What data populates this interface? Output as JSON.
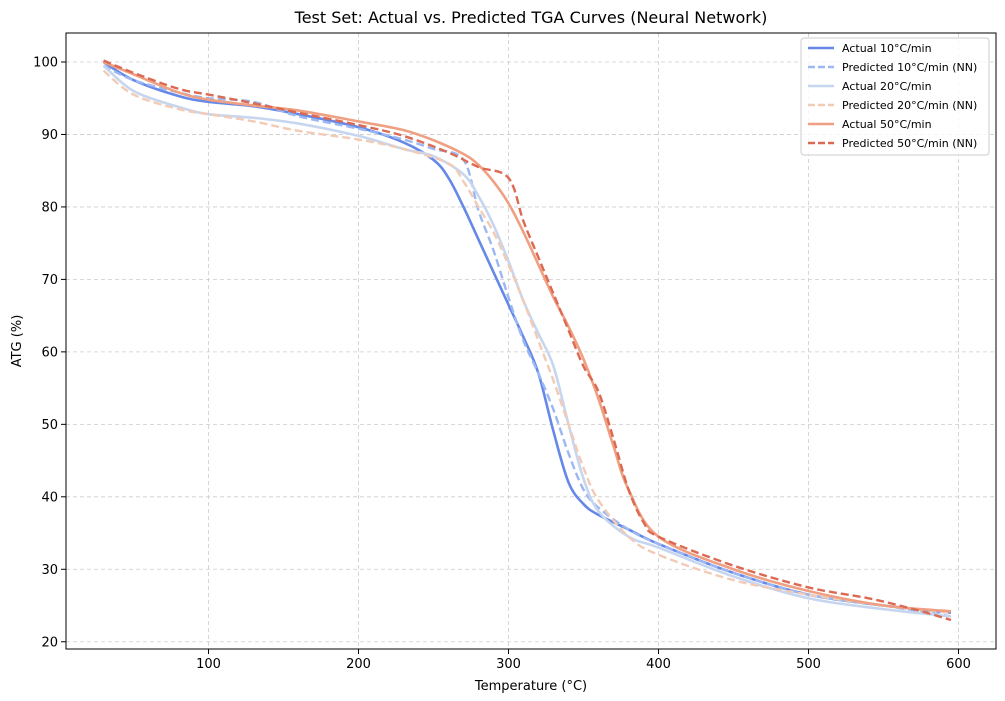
{
  "chart_data": {
    "type": "line",
    "title": "Test Set: Actual vs. Predicted TGA Curves (Neural Network)",
    "xlabel": "Temperature (°C)",
    "ylabel": "ATG (%)",
    "xlim": [
      5,
      625
    ],
    "ylim": [
      19,
      104
    ],
    "xticks": [
      100,
      200,
      300,
      400,
      500,
      600
    ],
    "yticks": [
      20,
      30,
      40,
      50,
      60,
      70,
      80,
      90,
      100
    ],
    "grid": true,
    "legend_position": "top-right",
    "series": [
      {
        "name": "Actual 10°C/min",
        "color": "#6688e8",
        "dashed": false,
        "width": 2.6,
        "x": [
          30,
          50,
          80,
          100,
          130,
          160,
          200,
          230,
          250,
          260,
          270,
          280,
          290,
          300,
          310,
          320,
          330,
          340,
          350,
          360,
          380,
          400,
          450,
          500,
          550,
          595
        ],
        "y": [
          100,
          97.5,
          95.3,
          94.5,
          93.9,
          92.8,
          91,
          88.9,
          86.5,
          84,
          80,
          75.5,
          71,
          66.5,
          62,
          57,
          49,
          42,
          39,
          37.5,
          35.5,
          33.5,
          29.5,
          26.5,
          25,
          24
        ]
      },
      {
        "name": "Predicted 10°C/min (NN)",
        "color": "#9bb8f3",
        "dashed": true,
        "width": 2.4,
        "x": [
          30,
          50,
          80,
          100,
          130,
          160,
          200,
          230,
          250,
          270,
          280,
          290,
          300,
          310,
          320,
          330,
          340,
          350,
          360,
          380,
          400,
          450,
          500,
          550,
          595
        ],
        "y": [
          99.5,
          97.5,
          95.8,
          95,
          94.5,
          92.5,
          90.8,
          89.3,
          88,
          86.5,
          79.5,
          74,
          67.5,
          61.5,
          57,
          52,
          46,
          41,
          38.5,
          35.5,
          33.5,
          29.5,
          26.5,
          25,
          23.5
        ]
      },
      {
        "name": "Actual 20°C/min",
        "color": "#c6d6ef",
        "dashed": false,
        "width": 2.6,
        "x": [
          30,
          50,
          80,
          100,
          130,
          160,
          200,
          230,
          250,
          270,
          280,
          290,
          300,
          310,
          320,
          330,
          340,
          350,
          360,
          380,
          400,
          450,
          500,
          550,
          595
        ],
        "y": [
          99.5,
          96,
          93.8,
          92.8,
          92.3,
          91.5,
          89.8,
          88,
          87,
          84.5,
          81.5,
          77.5,
          72.5,
          67,
          62.5,
          58,
          50,
          42.5,
          38,
          34.5,
          33,
          29,
          26,
          24.5,
          23.5
        ]
      },
      {
        "name": "Predicted 20°C/min (NN)",
        "color": "#f2cbb7",
        "dashed": true,
        "width": 2.4,
        "x": [
          30,
          50,
          80,
          100,
          130,
          160,
          200,
          230,
          260,
          270,
          280,
          290,
          300,
          310,
          320,
          330,
          340,
          350,
          360,
          380,
          400,
          450,
          500,
          550,
          595
        ],
        "y": [
          98.8,
          95.5,
          93.5,
          92.8,
          91.8,
          90.5,
          89.3,
          88,
          86,
          83.5,
          80,
          76.5,
          72,
          67,
          61.5,
          56,
          50,
          44,
          39.5,
          34.5,
          32,
          28.5,
          26.5,
          25,
          24
        ]
      },
      {
        "name": "Actual 50°C/min",
        "color": "#f0a082",
        "dashed": false,
        "width": 2.6,
        "x": [
          30,
          50,
          80,
          100,
          130,
          160,
          200,
          230,
          250,
          270,
          280,
          290,
          300,
          310,
          320,
          330,
          340,
          350,
          360,
          370,
          380,
          400,
          450,
          500,
          550,
          595
        ],
        "y": [
          100,
          98.3,
          95.8,
          94.8,
          94,
          93.3,
          91.8,
          90.6,
          89.2,
          87.3,
          85.8,
          83.5,
          80.5,
          76.5,
          72,
          67.5,
          63.5,
          59,
          53.5,
          47,
          41,
          34.5,
          30,
          27,
          25,
          24.2
        ]
      },
      {
        "name": "Predicted 50°C/min (NN)",
        "color": "#dc6a52",
        "dashed": true,
        "width": 2.4,
        "x": [
          30,
          50,
          80,
          100,
          130,
          160,
          200,
          230,
          260,
          280,
          300,
          310,
          320,
          330,
          340,
          350,
          360,
          370,
          380,
          390,
          400,
          450,
          500,
          540,
          570,
          595
        ],
        "y": [
          100.2,
          98.5,
          96.3,
          95.5,
          94.3,
          93,
          91.3,
          89.8,
          87.5,
          85.5,
          84,
          78,
          73,
          68,
          63,
          58,
          54.5,
          48,
          41,
          36.5,
          34.5,
          30.5,
          27.5,
          26,
          24.5,
          23
        ]
      }
    ]
  }
}
